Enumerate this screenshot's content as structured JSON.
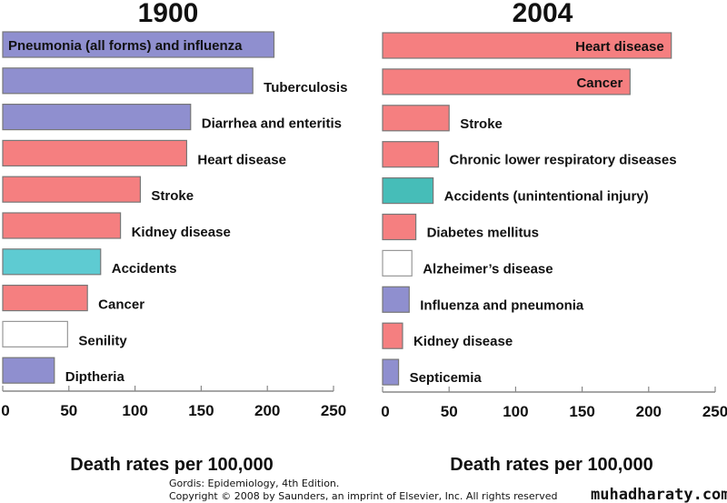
{
  "colors": {
    "infectious": "#8f8fcf",
    "chronic": "#f57f80",
    "accident_1900": "#5ecbd2",
    "accident_2004": "#46bdb8",
    "other": "#ffffff",
    "axis": "#888888"
  },
  "chart_data": [
    {
      "type": "bar",
      "orientation": "horizontal",
      "title": "1900",
      "xlabel": "Death rates per 100,000",
      "xlim": [
        0,
        250
      ],
      "xticks": [
        "0",
        "50",
        "100",
        "150",
        "200",
        "250"
      ],
      "grid": false,
      "bars": [
        {
          "label": "Pneumonia (all forms) and influenza",
          "value": 205,
          "group": "infectious",
          "label_inside": true
        },
        {
          "label": "Tuberculosis",
          "value": 189,
          "group": "infectious"
        },
        {
          "label": "Diarrhea and enteritis",
          "value": 142,
          "group": "infectious"
        },
        {
          "label": "Heart disease",
          "value": 139,
          "group": "chronic"
        },
        {
          "label": "Stroke",
          "value": 104,
          "group": "chronic"
        },
        {
          "label": "Kidney disease",
          "value": 89,
          "group": "chronic"
        },
        {
          "label": "Accidents",
          "value": 74,
          "group": "accident_1900"
        },
        {
          "label": "Cancer",
          "value": 64,
          "group": "chronic"
        },
        {
          "label": "Senility",
          "value": 49,
          "group": "other"
        },
        {
          "label": "Diptheria",
          "value": 39,
          "group": "infectious"
        }
      ]
    },
    {
      "type": "bar",
      "orientation": "horizontal",
      "title": "2004",
      "xlabel": "Death rates per 100,000",
      "xlim": [
        0,
        250
      ],
      "xticks": [
        "0",
        "50",
        "100",
        "150",
        "200",
        "250"
      ],
      "grid": false,
      "bars": [
        {
          "label": "Heart disease",
          "value": 217,
          "group": "chronic",
          "label_inside": true
        },
        {
          "label": "Cancer",
          "value": 186,
          "group": "chronic",
          "label_inside": true
        },
        {
          "label": "Stroke",
          "value": 50,
          "group": "chronic"
        },
        {
          "label": "Chronic lower respiratory diseases",
          "value": 42,
          "group": "chronic"
        },
        {
          "label": "Accidents (unintentional injury)",
          "value": 38,
          "group": "accident_2004"
        },
        {
          "label": "Diabetes mellitus",
          "value": 25,
          "group": "chronic"
        },
        {
          "label": "Alzheimer’s disease",
          "value": 22,
          "group": "other"
        },
        {
          "label": "Influenza and pneumonia",
          "value": 20,
          "group": "infectious"
        },
        {
          "label": "Kidney disease",
          "value": 15,
          "group": "chronic"
        },
        {
          "label": "Septicemia",
          "value": 12,
          "group": "infectious"
        }
      ]
    }
  ],
  "footer": {
    "credit_line1": "Gordis: Epidemiology, 4th Edition.",
    "credit_line2": "Copyright © 2008 by Saunders, an imprint of Elsevier, Inc. All rights reserved",
    "watermark": "muhadharaty.com"
  }
}
